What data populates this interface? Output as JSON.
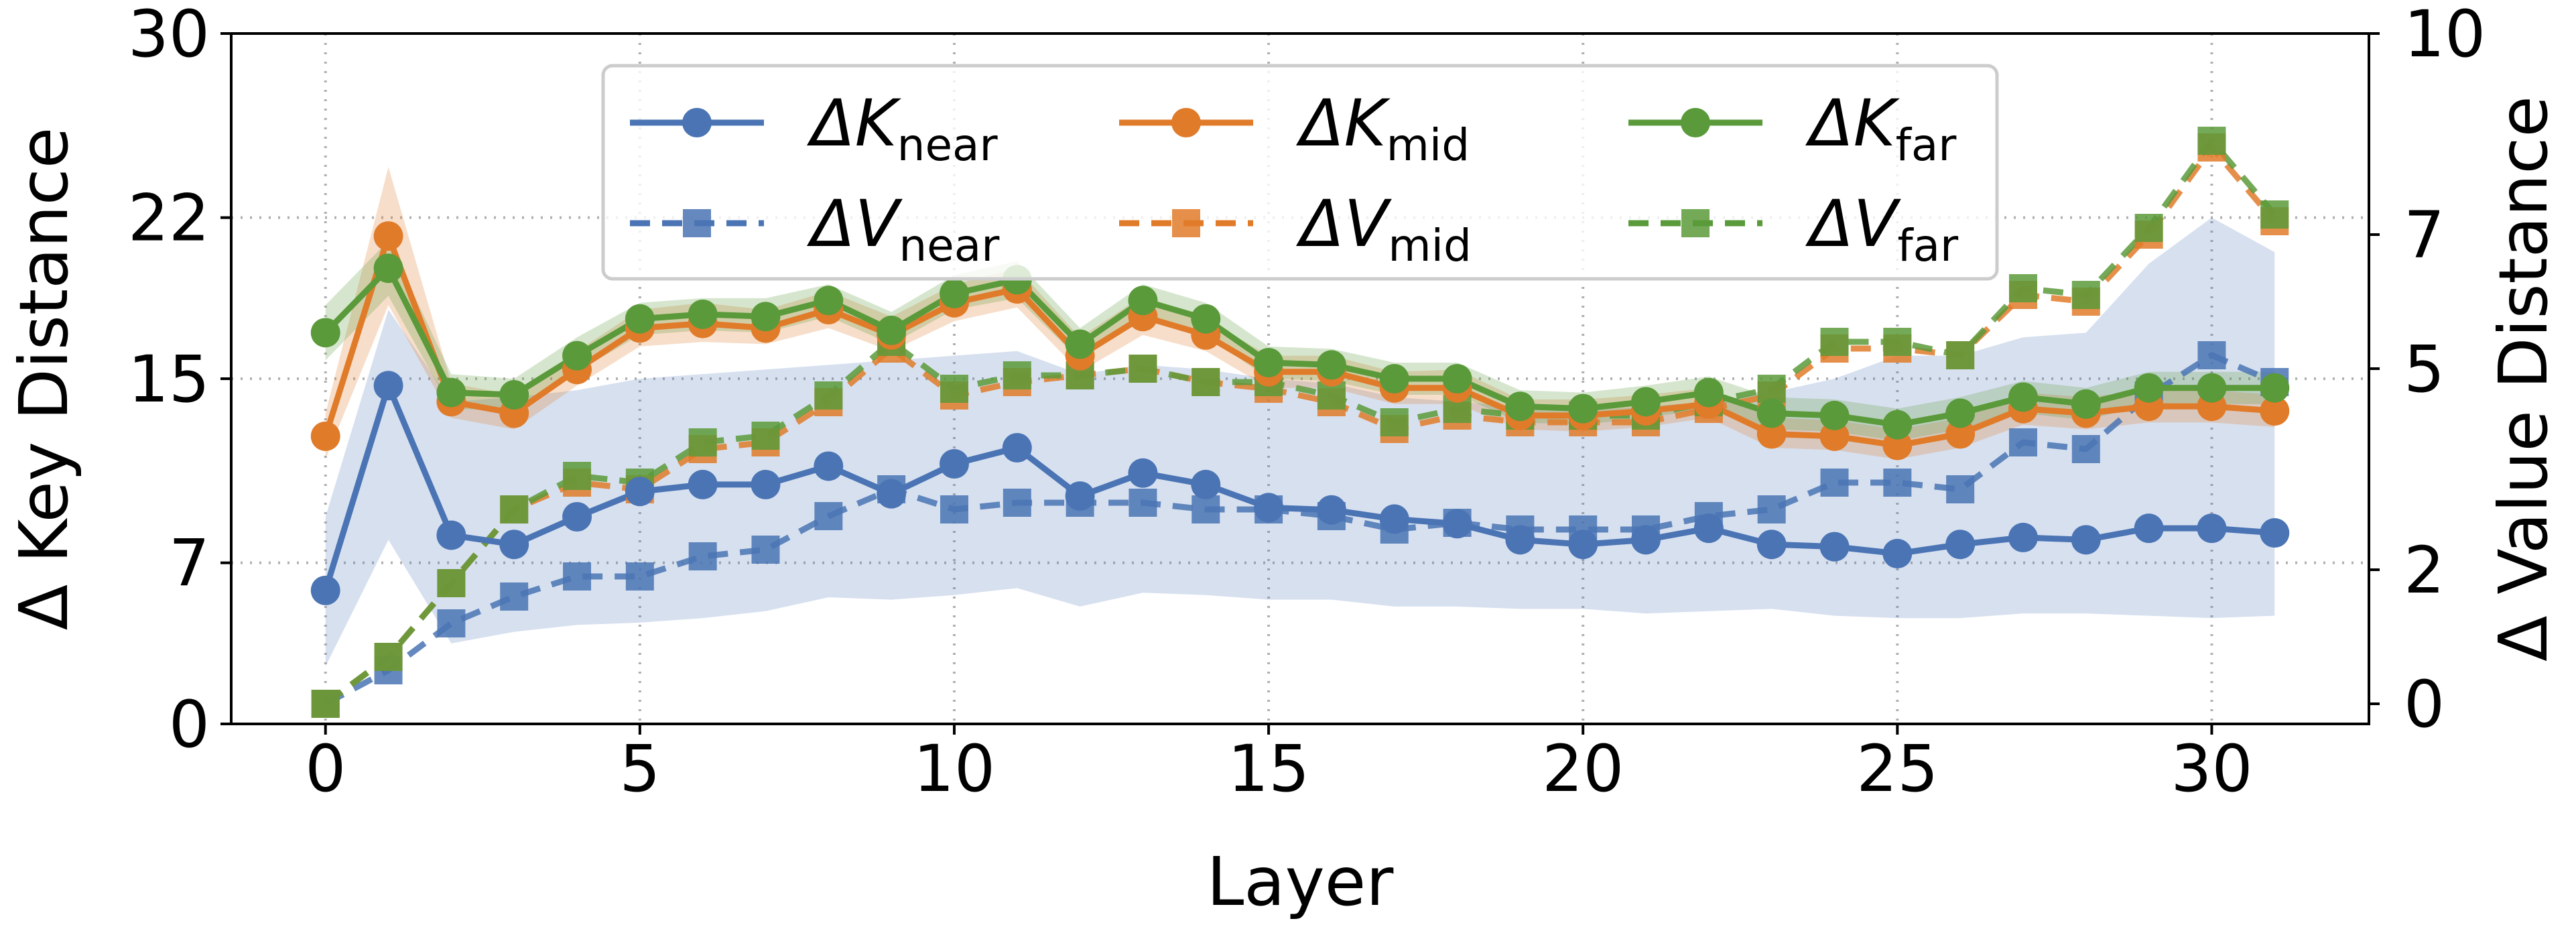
{
  "chart_data": {
    "type": "line",
    "xlabel": "Layer",
    "ylabel_left": "Δ Key Distance",
    "ylabel_right": "Δ Value Distance",
    "xlim": [
      -1.5,
      32.5
    ],
    "ylim_left": [
      0,
      30
    ],
    "ylim_right": [
      -0.3,
      10
    ],
    "xticks": [
      0,
      5,
      10,
      15,
      20,
      25,
      30
    ],
    "yticks_left": [
      0,
      7,
      15,
      22,
      30
    ],
    "yticks_right": [
      0,
      2,
      5,
      7,
      10
    ],
    "grid": true,
    "legend_position": "top-center",
    "x": [
      0,
      1,
      2,
      3,
      4,
      5,
      6,
      7,
      8,
      9,
      10,
      11,
      12,
      13,
      14,
      15,
      16,
      17,
      18,
      19,
      20,
      21,
      22,
      23,
      24,
      25,
      26,
      27,
      28,
      29,
      30,
      31
    ],
    "series": [
      {
        "id": "k_near",
        "axis": "left",
        "marker": "circle",
        "dash": false,
        "color": "#4a74b4",
        "label_main": "ΔK",
        "label_sub": "near",
        "values": [
          5.8,
          14.7,
          8.2,
          7.8,
          9.0,
          10.1,
          10.4,
          10.4,
          11.2,
          10.0,
          11.3,
          12.0,
          9.9,
          10.9,
          10.4,
          9.4,
          9.3,
          8.9,
          8.7,
          8.0,
          7.8,
          8.0,
          8.5,
          7.8,
          7.7,
          7.4,
          7.8,
          8.1,
          8.0,
          8.5,
          8.5,
          8.3
        ],
        "band": {
          "lower": [
            2.5,
            8.0,
            3.5,
            4.0,
            4.3,
            4.4,
            4.6,
            4.9,
            5.5,
            5.4,
            5.6,
            5.9,
            5.1,
            5.7,
            5.6,
            5.4,
            5.4,
            5.1,
            5.1,
            5.0,
            5.0,
            4.8,
            4.9,
            5.0,
            4.7,
            4.6,
            4.6,
            4.8,
            4.8,
            4.7,
            4.6,
            4.7
          ],
          "upper": [
            9.0,
            18.0,
            14.0,
            14.2,
            14.5,
            15.0,
            15.2,
            15.4,
            15.6,
            15.8,
            16.0,
            16.2,
            15.2,
            15.6,
            15.4,
            15.0,
            14.8,
            14.2,
            14.0,
            13.8,
            13.6,
            13.8,
            14.0,
            14.4,
            15.0,
            16.0,
            16.0,
            16.8,
            17.0,
            20.0,
            22.0,
            20.5
          ]
        }
      },
      {
        "id": "k_mid",
        "axis": "left",
        "marker": "circle",
        "dash": false,
        "color": "#e07b2a",
        "label_main": "ΔK",
        "label_sub": "mid",
        "values": [
          12.5,
          21.2,
          14.0,
          13.5,
          15.4,
          17.2,
          17.4,
          17.2,
          18.0,
          16.9,
          18.3,
          18.9,
          16.0,
          17.7,
          16.9,
          15.3,
          15.3,
          14.6,
          14.6,
          13.4,
          13.4,
          13.6,
          13.9,
          12.6,
          12.5,
          12.1,
          12.6,
          13.7,
          13.5,
          13.8,
          13.8,
          13.6
        ],
        "band": {
          "lower": [
            11.5,
            18.2,
            13.3,
            12.8,
            14.7,
            16.4,
            16.6,
            16.5,
            17.2,
            16.2,
            17.5,
            18.1,
            15.3,
            16.9,
            16.2,
            14.6,
            14.6,
            13.9,
            13.9,
            12.8,
            12.7,
            12.9,
            13.3,
            12.0,
            11.9,
            11.5,
            12.0,
            13.0,
            12.8,
            13.1,
            13.1,
            12.9
          ],
          "upper": [
            13.5,
            24.2,
            14.8,
            14.3,
            16.2,
            18.0,
            18.3,
            18.0,
            18.8,
            17.7,
            19.1,
            19.8,
            16.8,
            18.6,
            17.6,
            16.0,
            16.0,
            15.3,
            15.4,
            14.1,
            14.1,
            14.3,
            14.6,
            13.3,
            13.2,
            12.8,
            13.3,
            14.4,
            14.2,
            14.5,
            14.5,
            14.3
          ]
        }
      },
      {
        "id": "k_far",
        "axis": "left",
        "marker": "circle",
        "dash": false,
        "color": "#5a9a3a",
        "label_main": "ΔK",
        "label_sub": "far",
        "values": [
          17.0,
          19.8,
          14.4,
          14.3,
          16.0,
          17.6,
          17.8,
          17.7,
          18.4,
          17.1,
          18.7,
          19.3,
          16.5,
          18.4,
          17.6,
          15.7,
          15.6,
          15.0,
          15.0,
          13.8,
          13.7,
          14.0,
          14.4,
          13.5,
          13.4,
          13.0,
          13.5,
          14.2,
          13.9,
          14.6,
          14.6,
          14.6
        ],
        "band": {
          "lower": [
            15.8,
            18.6,
            13.7,
            13.6,
            15.3,
            16.9,
            17.1,
            17.0,
            17.7,
            16.5,
            18.0,
            18.5,
            15.8,
            17.7,
            16.9,
            15.0,
            14.9,
            14.3,
            14.3,
            13.1,
            13.0,
            13.3,
            13.7,
            12.8,
            12.7,
            12.3,
            12.8,
            13.5,
            13.2,
            13.9,
            13.9,
            13.9
          ],
          "upper": [
            18.2,
            21.0,
            15.2,
            15.0,
            16.8,
            18.3,
            18.5,
            18.5,
            19.1,
            17.9,
            19.5,
            20.1,
            17.2,
            19.1,
            18.3,
            16.4,
            16.3,
            15.7,
            15.7,
            14.5,
            14.4,
            14.7,
            15.1,
            14.2,
            14.1,
            13.7,
            14.2,
            14.9,
            14.6,
            15.3,
            15.3,
            15.3
          ]
        }
      },
      {
        "id": "v_near",
        "axis": "right",
        "marker": "square",
        "dash": true,
        "color": "#4a74b4",
        "label_main": "ΔV",
        "label_sub": "near",
        "values": [
          0.0,
          0.5,
          1.2,
          1.6,
          1.9,
          1.9,
          2.2,
          2.3,
          2.8,
          3.2,
          2.9,
          3.0,
          3.0,
          3.0,
          2.9,
          2.9,
          2.8,
          2.6,
          2.7,
          2.6,
          2.6,
          2.6,
          2.8,
          2.9,
          3.3,
          3.3,
          3.2,
          3.9,
          3.8,
          4.6,
          5.2,
          4.8
        ]
      },
      {
        "id": "v_mid",
        "axis": "right",
        "marker": "square",
        "dash": true,
        "color": "#e07b2a",
        "label_main": "ΔV",
        "label_sub": "mid",
        "values": [
          0.0,
          0.7,
          1.8,
          2.9,
          3.3,
          3.2,
          3.8,
          3.9,
          4.5,
          5.3,
          4.6,
          4.8,
          4.9,
          5.0,
          4.8,
          4.7,
          4.5,
          4.1,
          4.3,
          4.2,
          4.2,
          4.2,
          4.4,
          4.6,
          5.3,
          5.3,
          5.2,
          6.1,
          6.0,
          7.0,
          8.3,
          7.2
        ]
      },
      {
        "id": "v_far",
        "axis": "right",
        "marker": "square",
        "dash": true,
        "color": "#5a9a3a",
        "label_main": "ΔV",
        "label_sub": "far",
        "values": [
          0.0,
          0.7,
          1.8,
          2.9,
          3.4,
          3.3,
          3.9,
          4.0,
          4.6,
          5.4,
          4.7,
          4.9,
          4.9,
          5.0,
          4.8,
          4.8,
          4.6,
          4.2,
          4.4,
          4.3,
          4.3,
          4.3,
          4.5,
          4.7,
          5.4,
          5.4,
          5.2,
          6.2,
          6.1,
          7.1,
          8.4,
          7.3
        ]
      }
    ]
  }
}
